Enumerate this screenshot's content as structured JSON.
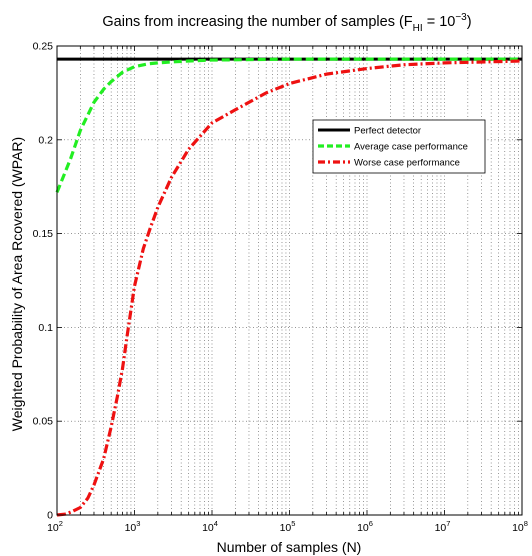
{
  "chart_data": {
    "type": "line",
    "title": {
      "main": "Gains from increasing the number of samples (F",
      "subscript": "HI",
      "middle": " = 10",
      "superscript": "−3",
      "end": ")"
    },
    "xlabel": "Number of samples (N)",
    "ylabel": "Weighted Probability of Area Rcovered (WPAR)",
    "x_scale": "log",
    "xlim": [
      100,
      100000000
    ],
    "ylim": [
      0,
      0.25
    ],
    "x_ticks": [
      {
        "value": 100,
        "base": "10",
        "exp": "2"
      },
      {
        "value": 1000,
        "base": "10",
        "exp": "3"
      },
      {
        "value": 10000,
        "base": "10",
        "exp": "4"
      },
      {
        "value": 100000,
        "base": "10",
        "exp": "5"
      },
      {
        "value": 1000000,
        "base": "10",
        "exp": "6"
      },
      {
        "value": 10000000,
        "base": "10",
        "exp": "7"
      },
      {
        "value": 100000000,
        "base": "10",
        "exp": "8"
      }
    ],
    "y_ticks": [
      {
        "value": 0,
        "label": "0"
      },
      {
        "value": 0.05,
        "label": "0.05"
      },
      {
        "value": 0.1,
        "label": "0.1"
      },
      {
        "value": 0.15,
        "label": "0.15"
      },
      {
        "value": 0.2,
        "label": "0.2"
      },
      {
        "value": 0.25,
        "label": "0.25"
      }
    ],
    "grid": true,
    "legend_position": "upper-right",
    "series": [
      {
        "name": "Perfect detector",
        "color": "#000000",
        "style": "solid",
        "x": [
          100,
          100000000
        ],
        "y": [
          0.243,
          0.243
        ]
      },
      {
        "name": "Average case performance",
        "color": "#22ee22",
        "style": "dashed",
        "x": [
          100,
          150,
          200,
          300,
          400,
          500,
          700,
          1000,
          1500,
          2000,
          3000,
          5000,
          10000,
          100000,
          100000000
        ],
        "y": [
          0.172,
          0.19,
          0.205,
          0.22,
          0.227,
          0.231,
          0.236,
          0.239,
          0.2405,
          0.241,
          0.2415,
          0.242,
          0.2425,
          0.243,
          0.243
        ]
      },
      {
        "name": "Worse case performance",
        "color": "#ee1111",
        "style": "dashdot",
        "x": [
          100,
          130,
          160,
          200,
          250,
          300,
          400,
          500,
          600,
          700,
          800,
          1000,
          1300,
          1600,
          2000,
          3000,
          5000,
          10000,
          20000,
          50000,
          100000,
          300000,
          1000000,
          3000000,
          10000000,
          100000000
        ],
        "y": [
          0,
          0.0005,
          0.002,
          0.004,
          0.009,
          0.016,
          0.03,
          0.047,
          0.063,
          0.078,
          0.095,
          0.122,
          0.142,
          0.153,
          0.164,
          0.18,
          0.195,
          0.209,
          0.216,
          0.225,
          0.23,
          0.235,
          0.238,
          0.24,
          0.241,
          0.242
        ]
      }
    ]
  }
}
